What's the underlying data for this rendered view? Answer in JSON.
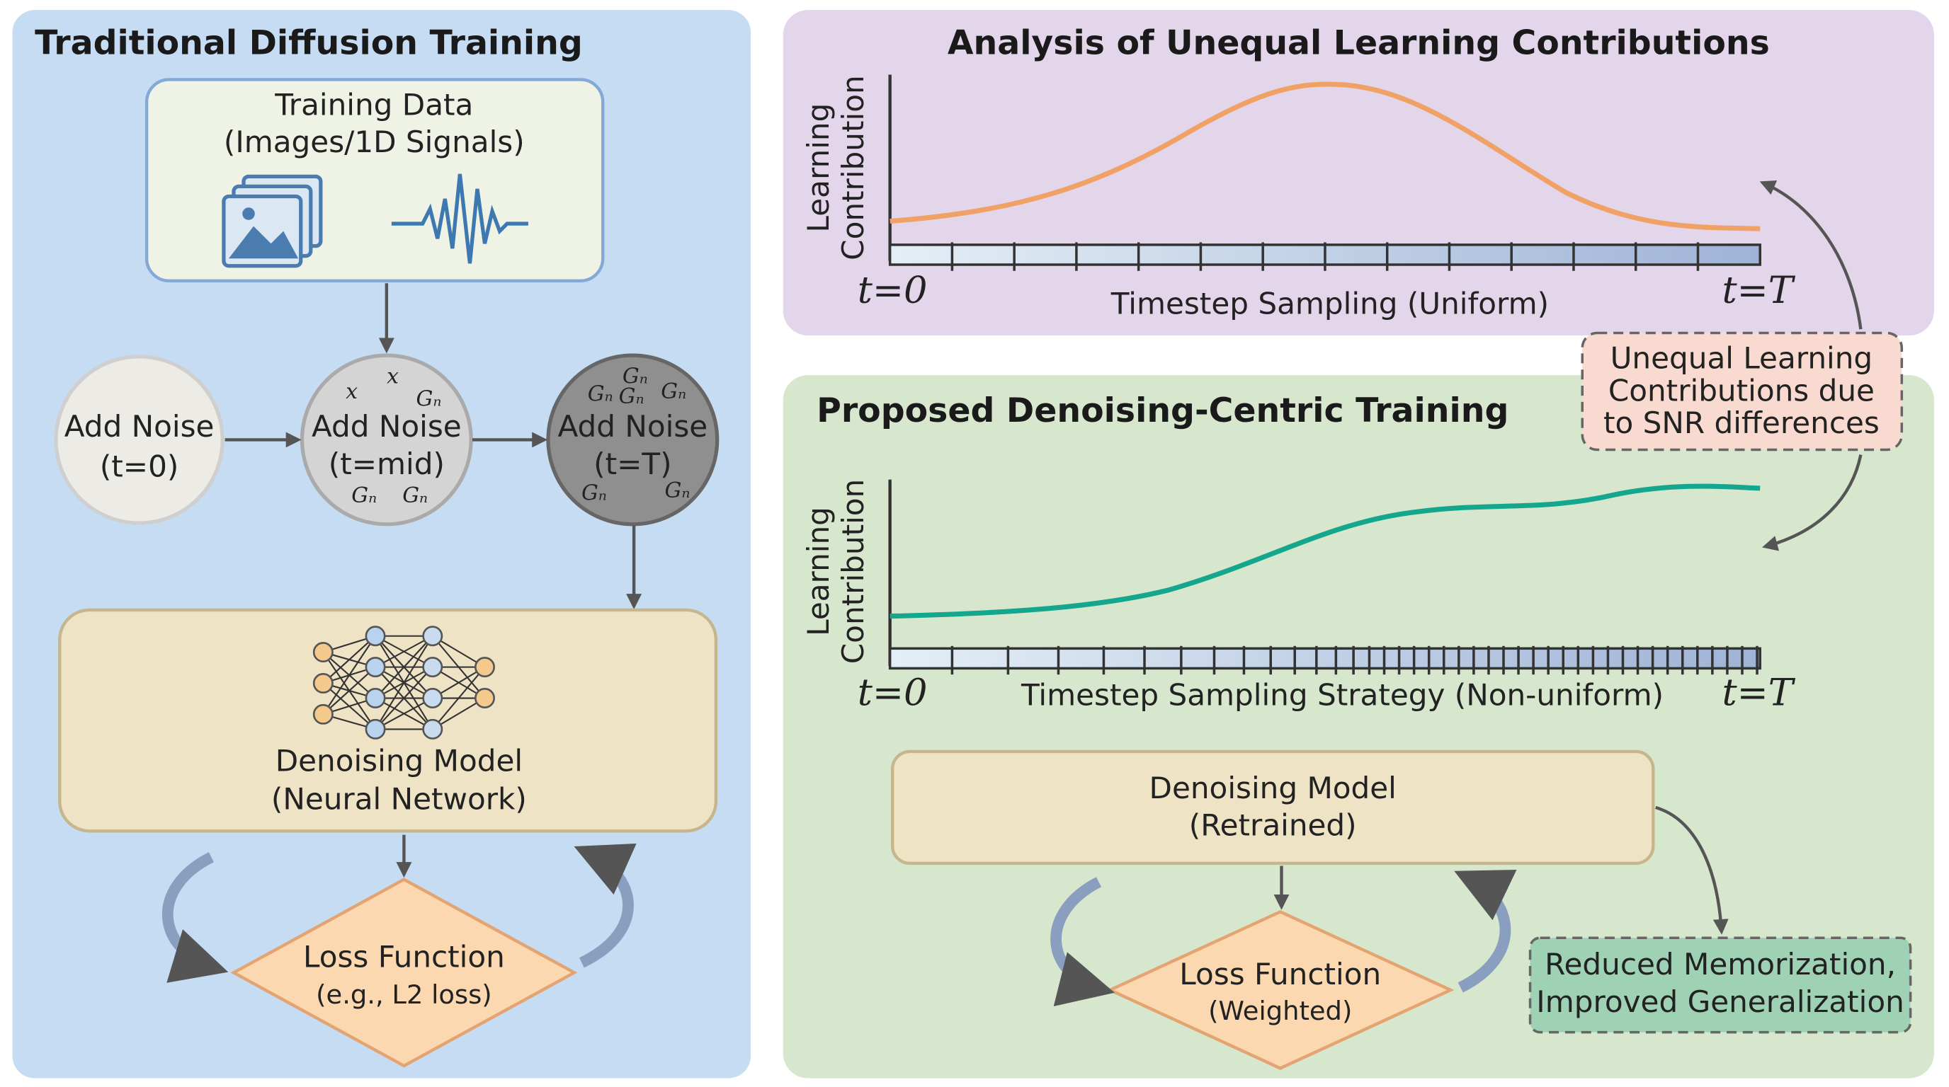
{
  "left_panel": {
    "title": "Traditional Diffusion Training",
    "training_data": {
      "lines": [
        "Training Data",
        "(Images/1D Signals)"
      ]
    },
    "noise_steps": [
      {
        "label": "Add Noise",
        "step": "(t=0)",
        "symbols": []
      },
      {
        "label": "Add Noise",
        "step": "(t=mid)",
        "symbols": [
          "x",
          "x",
          "Gₙ",
          "Gₙ",
          "Gₙ"
        ]
      },
      {
        "label": "Add Noise",
        "step": "(t=T)",
        "symbols": [
          "Gₙ",
          "Gₙ",
          "Gₙ",
          "Gₙ",
          "Gₙ",
          "Gₙ"
        ]
      }
    ],
    "model": {
      "lines": [
        "Denoising Model",
        "(Neural Network)"
      ]
    },
    "loss": {
      "lines": [
        "Loss Function",
        "(e.g., L2 loss)"
      ]
    }
  },
  "top_right": {
    "title": "Analysis of Unequal Learning Contributions",
    "y_label": [
      "Learning",
      "Contribution"
    ],
    "start": "t=0",
    "end": "t=T",
    "x_label": "Timestep Sampling (Uniform)"
  },
  "note": {
    "lines": [
      "Unequal Learning",
      "Contributions due",
      "to SNR differences"
    ]
  },
  "bottom_right": {
    "title": "Proposed Denoising-Centric Training",
    "y_label": [
      "Learning",
      "Contribution"
    ],
    "start": "t=0",
    "end": "t=T",
    "x_label": "Timestep Sampling Strategy (Non-uniform)",
    "model": {
      "lines": [
        "Denoising Model",
        "(Retrained)"
      ]
    },
    "loss": {
      "lines": [
        "Loss Function",
        "(Weighted)"
      ]
    },
    "result": {
      "lines": [
        "Reduced Memorization,",
        "Improved Generalization"
      ]
    }
  }
}
